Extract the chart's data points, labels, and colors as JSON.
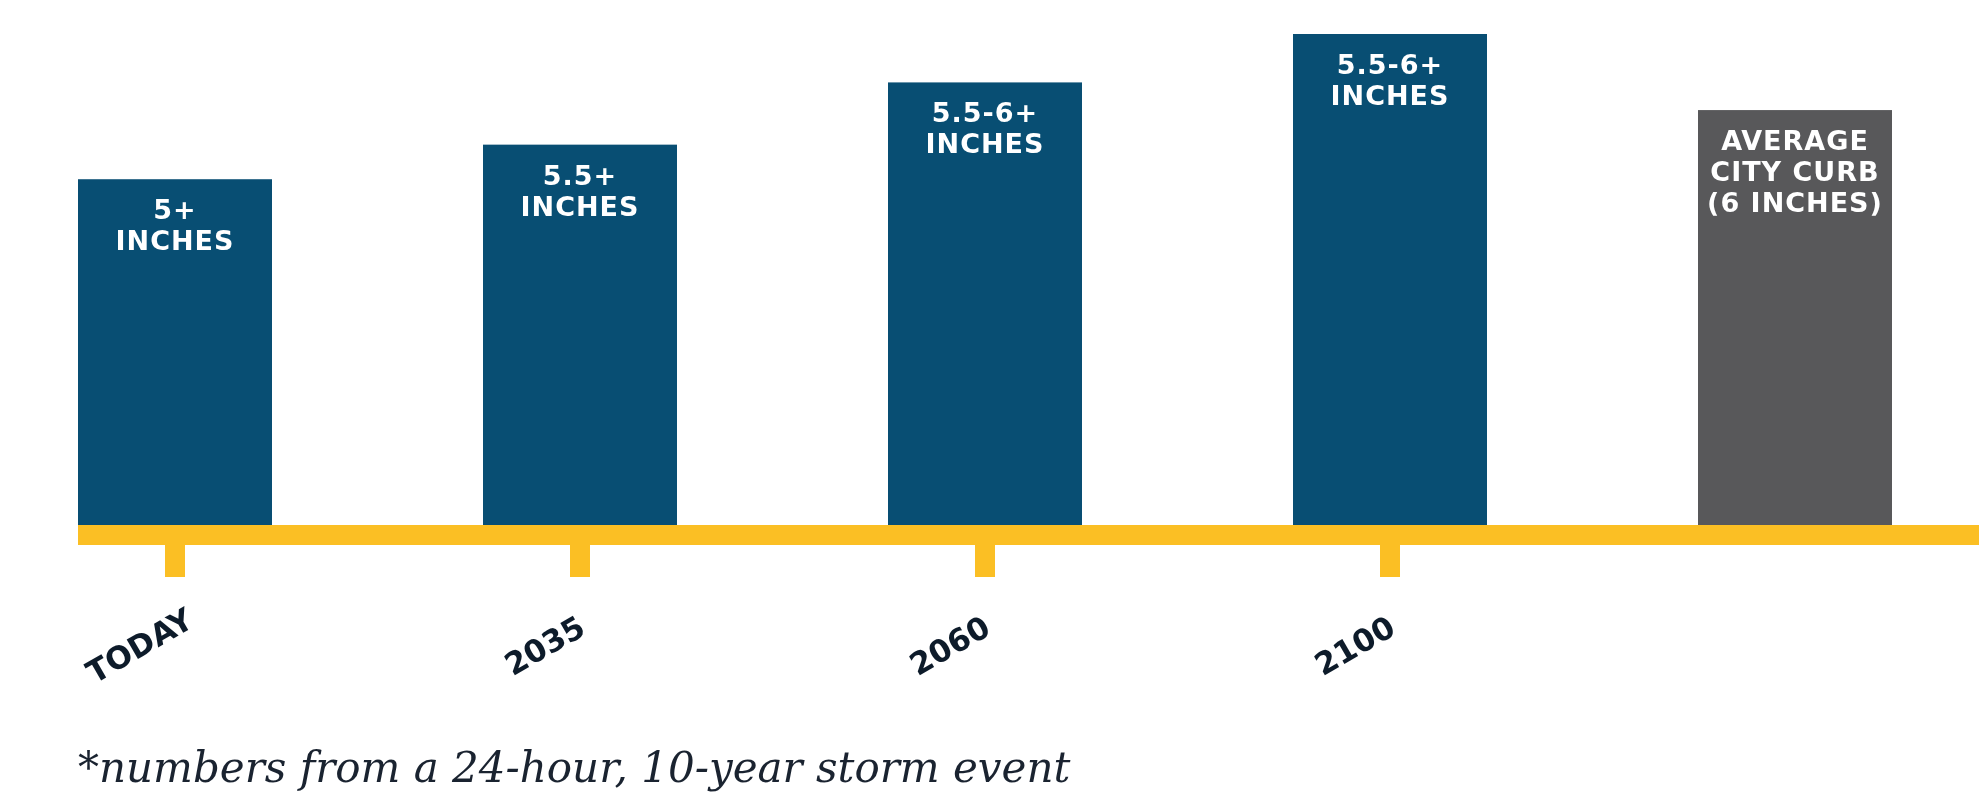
{
  "chart_data": {
    "type": "bar",
    "ylim": [
      0,
      7.1
    ],
    "categories": [
      "TODAY",
      "2035",
      "2060",
      "2100",
      null
    ],
    "values": [
      5,
      5.5,
      6.4,
      7.1,
      6
    ],
    "colors": [
      "#084e73",
      "#084e73",
      "#084e73",
      "#084e73",
      "#58585a"
    ],
    "value_labels": [
      "5+\nINCHES",
      "5.5+\nINCHES",
      "5.5-6+\nINCHES",
      "5.5-6+\nINCHES",
      "AVERAGE\nCITY CURB\n(6 INCHES)"
    ],
    "annotations": [
      "*numbers from a 24-hour, 10-year storm event"
    ]
  }
}
